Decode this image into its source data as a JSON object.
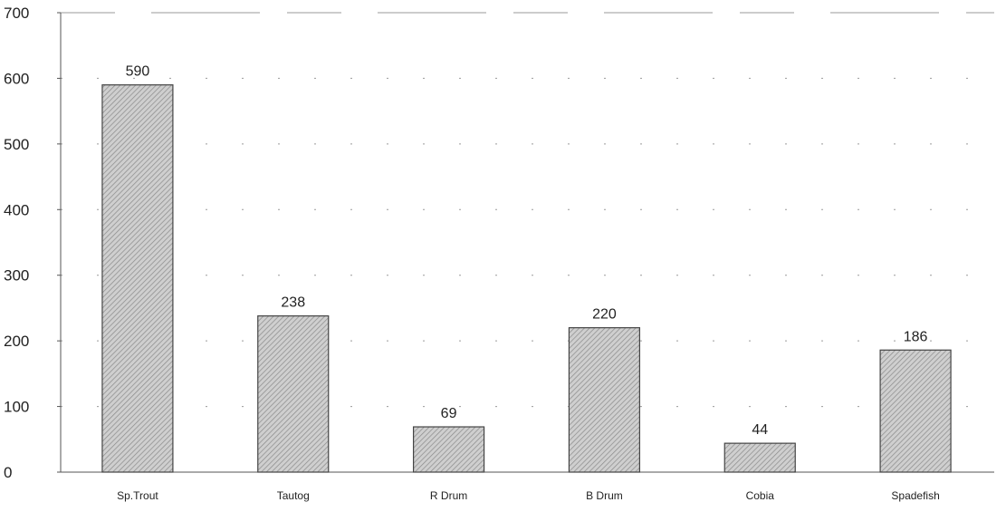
{
  "chart_data": {
    "type": "bar",
    "categories": [
      "Sp.Trout",
      "Tautog",
      "R Drum",
      "B Drum",
      "Cobia",
      "Spadefish"
    ],
    "values": [
      590,
      238,
      69,
      220,
      44,
      186
    ],
    "value_labels": [
      "590",
      "238",
      "69",
      "220",
      "44",
      "186"
    ],
    "title": "",
    "xlabel": "",
    "ylabel": "",
    "ylim": [
      0,
      700
    ],
    "yticks": [
      0,
      100,
      200,
      300,
      400,
      500,
      600,
      700
    ],
    "grid": true,
    "bar_color": "#b9b9b9"
  }
}
